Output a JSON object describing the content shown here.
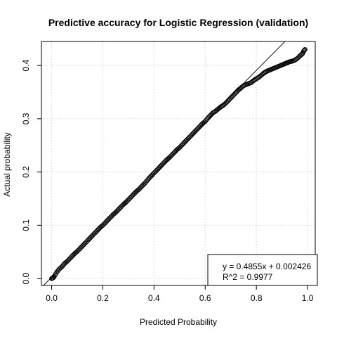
{
  "chart_data": {
    "type": "scatter",
    "title": "Predictive accuracy for Logistic Regression (validation)",
    "xlabel": "Predicted Probability",
    "ylabel": "Actual probability",
    "xlim": [
      -0.04,
      1.03
    ],
    "ylim": [
      -0.013,
      0.445
    ],
    "x_ticks": [
      0.0,
      0.2,
      0.4,
      0.6,
      0.8,
      1.0
    ],
    "x_tick_labels": [
      "0.0",
      "0.2",
      "0.4",
      "0.6",
      "0.8",
      "1.0"
    ],
    "y_ticks": [
      0.0,
      0.1,
      0.2,
      0.3,
      0.4
    ],
    "y_tick_labels": [
      "0.0",
      "0.1",
      "0.2",
      "0.3",
      "0.4"
    ],
    "grid": true,
    "legend_position": "bottom-right",
    "legend_lines": [
      "y = 0.4855x + 0.002426",
      "R^2 = 0.9977"
    ],
    "fit_line": {
      "slope": 0.4855,
      "intercept": 0.002426
    },
    "series": [
      {
        "marker": "open-circle",
        "x": [
          0.0,
          0.005,
          0.01,
          0.02,
          0.03,
          0.04,
          0.05,
          0.06,
          0.07,
          0.08,
          0.09,
          0.1,
          0.11,
          0.12,
          0.13,
          0.14,
          0.15,
          0.16,
          0.17,
          0.18,
          0.19,
          0.2,
          0.21,
          0.22,
          0.23,
          0.24,
          0.25,
          0.26,
          0.27,
          0.28,
          0.29,
          0.3,
          0.31,
          0.32,
          0.33,
          0.34,
          0.35,
          0.36,
          0.37,
          0.38,
          0.39,
          0.4,
          0.41,
          0.42,
          0.43,
          0.44,
          0.45,
          0.46,
          0.47,
          0.48,
          0.49,
          0.5,
          0.51,
          0.52,
          0.53,
          0.54,
          0.55,
          0.56,
          0.57,
          0.58,
          0.59,
          0.6,
          0.61,
          0.62,
          0.63,
          0.64,
          0.65,
          0.66,
          0.67,
          0.68,
          0.69,
          0.7,
          0.71,
          0.72,
          0.73,
          0.74,
          0.75,
          0.76,
          0.77,
          0.78,
          0.79,
          0.8,
          0.81,
          0.82,
          0.83,
          0.84,
          0.85,
          0.86,
          0.87,
          0.88,
          0.89,
          0.9,
          0.91,
          0.92,
          0.93,
          0.94,
          0.95,
          0.96,
          0.97,
          0.98,
          0.985,
          0.99
        ],
        "y": [
          0.0,
          0.001,
          0.004,
          0.012,
          0.018,
          0.022,
          0.028,
          0.032,
          0.037,
          0.042,
          0.047,
          0.051,
          0.056,
          0.061,
          0.066,
          0.071,
          0.076,
          0.081,
          0.086,
          0.091,
          0.096,
          0.1,
          0.105,
          0.11,
          0.115,
          0.12,
          0.124,
          0.129,
          0.134,
          0.139,
          0.143,
          0.148,
          0.153,
          0.158,
          0.163,
          0.167,
          0.172,
          0.177,
          0.182,
          0.188,
          0.193,
          0.198,
          0.203,
          0.208,
          0.213,
          0.218,
          0.223,
          0.227,
          0.232,
          0.237,
          0.242,
          0.246,
          0.251,
          0.256,
          0.261,
          0.266,
          0.271,
          0.276,
          0.281,
          0.286,
          0.291,
          0.295,
          0.301,
          0.306,
          0.311,
          0.314,
          0.318,
          0.322,
          0.325,
          0.329,
          0.334,
          0.339,
          0.344,
          0.349,
          0.354,
          0.358,
          0.362,
          0.364,
          0.366,
          0.368,
          0.372,
          0.375,
          0.378,
          0.382,
          0.386,
          0.389,
          0.391,
          0.393,
          0.395,
          0.397,
          0.399,
          0.401,
          0.403,
          0.405,
          0.407,
          0.408,
          0.41,
          0.413,
          0.418,
          0.422,
          0.427,
          0.43
        ]
      }
    ]
  }
}
